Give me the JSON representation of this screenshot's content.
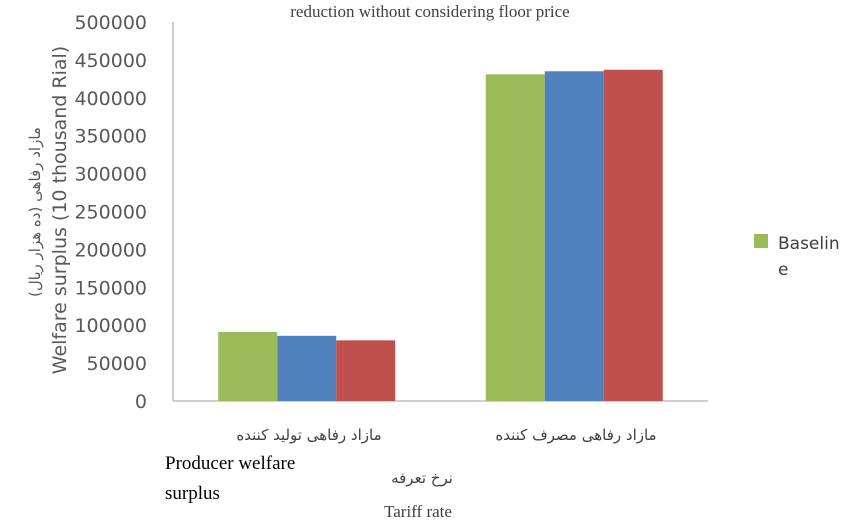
{
  "chart_data": {
    "type": "bar",
    "title": "reduction without considering floor price",
    "categories": [
      "مازاد رفاهی تولید کننده",
      "مازاد رفاهی مصرف کننده"
    ],
    "category_labels_en": [
      "Producer welfare surplus",
      ""
    ],
    "series": [
      {
        "name": "Baseline",
        "color": "#9bbb59",
        "values": [
          91000,
          431000
        ]
      },
      {
        "name": "",
        "color": "#4f81bd",
        "values": [
          86000,
          435000
        ]
      },
      {
        "name": "",
        "color": "#c0504d",
        "values": [
          80000,
          437000
        ]
      }
    ],
    "ylim": [
      0,
      500000
    ],
    "yticks": [
      0,
      50000,
      100000,
      150000,
      200000,
      250000,
      300000,
      350000,
      400000,
      450000,
      500000
    ],
    "ylabel": "مازاد رفاهی (ده هزار ریال)",
    "ylabel_en": "Welfare surplus (10 thousand Rial)",
    "xlabel": "نرخ تعرفه",
    "xlabel_en": "Tariff rate",
    "grid": false,
    "legend": {
      "position": "right",
      "label": "Baselin e"
    }
  }
}
